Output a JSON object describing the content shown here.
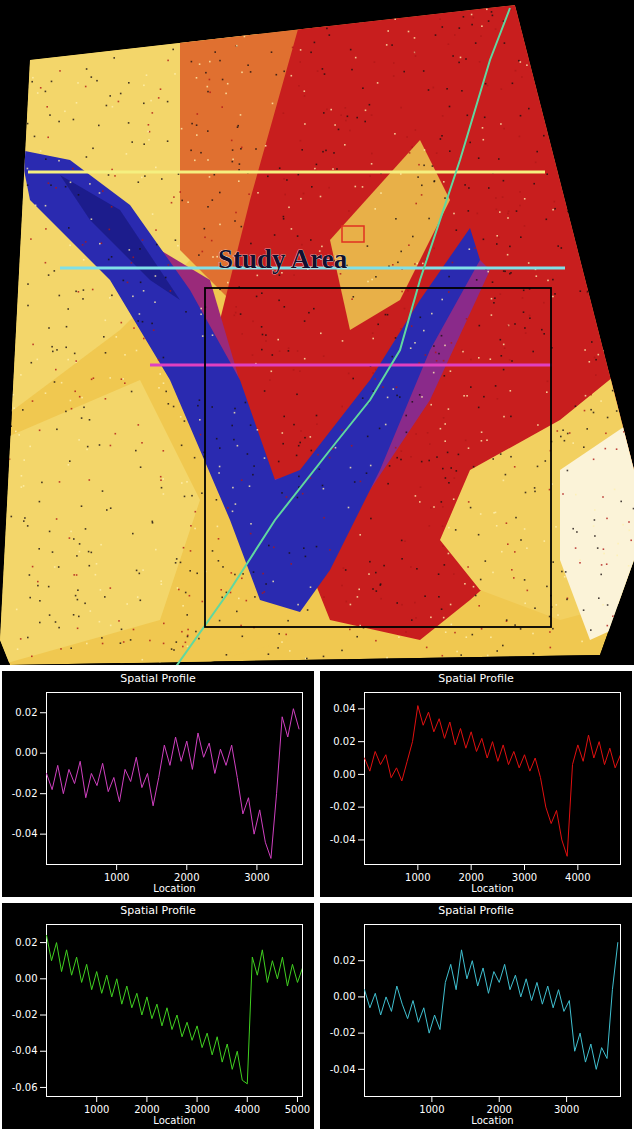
{
  "map": {
    "label": "Study Area"
  },
  "chart_data": [
    {
      "type": "line",
      "title": "Spatial Profile",
      "x_label": "Location",
      "color": "#d040c0",
      "xlim": [
        0,
        3650
      ],
      "xticks": [
        1000,
        2000,
        3000
      ],
      "ylim": [
        -0.055,
        0.03
      ],
      "yticks": [
        -0.04,
        -0.02,
        {
          "value": 0,
          "label": "0.00"
        },
        0.02
      ],
      "x": [
        0,
        80,
        160,
        240,
        320,
        400,
        480,
        560,
        640,
        720,
        800,
        880,
        960,
        1040,
        1120,
        1200,
        1280,
        1360,
        1440,
        1520,
        1600,
        1680,
        1760,
        1840,
        1920,
        2000,
        2080,
        2160,
        2240,
        2320,
        2400,
        2480,
        2560,
        2640,
        2720,
        2800,
        2880,
        2960,
        3040,
        3120,
        3200,
        3280,
        3360,
        3440,
        3520,
        3600
      ],
      "values": [
        -0.01,
        -0.018,
        -0.006,
        -0.02,
        -0.008,
        -0.015,
        -0.004,
        -0.022,
        -0.01,
        -0.016,
        -0.005,
        -0.019,
        -0.012,
        -0.024,
        -0.008,
        -0.014,
        -0.002,
        -0.017,
        -0.01,
        -0.026,
        -0.012,
        0.004,
        -0.006,
        0.008,
        -0.004,
        0.006,
        -0.008,
        0.01,
        -0.002,
        0.005,
        -0.01,
        0.002,
        -0.006,
        0.004,
        -0.012,
        -0.03,
        -0.022,
        -0.04,
        -0.028,
        -0.044,
        -0.052,
        -0.02,
        0.018,
        0.008,
        0.022,
        0.012
      ]
    },
    {
      "type": "line",
      "title": "Spatial Profile",
      "x_label": "Location",
      "color": "#e01010",
      "xlim": [
        0,
        4800
      ],
      "xticks": [
        1000,
        2000,
        3000,
        4000
      ],
      "ylim": [
        -0.055,
        0.05
      ],
      "yticks": [
        -0.04,
        -0.02,
        {
          "value": 0,
          "label": "0.00"
        },
        0.02,
        0.04
      ],
      "x": [
        0,
        100,
        200,
        300,
        400,
        500,
        600,
        700,
        800,
        900,
        1000,
        1100,
        1200,
        1300,
        1400,
        1500,
        1600,
        1700,
        1800,
        1900,
        2000,
        2100,
        2200,
        2300,
        2400,
        2500,
        2600,
        2700,
        2800,
        2900,
        3000,
        3100,
        3200,
        3300,
        3400,
        3500,
        3600,
        3700,
        3800,
        3900,
        4000,
        4100,
        4200,
        4300,
        4400,
        4500,
        4600,
        4700,
        4800
      ],
      "values": [
        0.01,
        0.002,
        0.014,
        0.006,
        0.012,
        -0.002,
        0.004,
        -0.004,
        0.008,
        0.02,
        0.042,
        0.03,
        0.038,
        0.026,
        0.034,
        0.022,
        0.032,
        0.018,
        0.028,
        0.016,
        0.026,
        0.014,
        0.022,
        0.01,
        0.02,
        0.008,
        0.018,
        0.006,
        0.014,
        0.004,
        0.012,
        0.002,
        0.01,
        -0.002,
        -0.02,
        -0.03,
        -0.022,
        -0.04,
        -0.05,
        0.006,
        0.018,
        0.008,
        0.024,
        0.01,
        0.02,
        0.006,
        0.016,
        0.004,
        0.012
      ]
    },
    {
      "type": "line",
      "title": "Spatial Profile",
      "x_label": "Location",
      "color": "#40d020",
      "xlim": [
        0,
        5100
      ],
      "xticks": [
        1000,
        2000,
        3000,
        4000,
        5000
      ],
      "ylim": [
        -0.065,
        0.03
      ],
      "yticks": [
        -0.06,
        -0.04,
        -0.02,
        {
          "value": 0,
          "label": "0.00"
        },
        0.02
      ],
      "x": [
        0,
        100,
        200,
        300,
        400,
        500,
        600,
        700,
        800,
        900,
        1000,
        1100,
        1200,
        1300,
        1400,
        1500,
        1600,
        1700,
        1800,
        1900,
        2000,
        2100,
        2200,
        2300,
        2400,
        2500,
        2600,
        2700,
        2800,
        2900,
        3000,
        3100,
        3200,
        3300,
        3400,
        3500,
        3600,
        3700,
        3800,
        3900,
        4000,
        4100,
        4200,
        4300,
        4400,
        4500,
        4600,
        4700,
        4800,
        4900,
        5000,
        5100
      ],
      "values": [
        0.024,
        0.01,
        0.02,
        0.004,
        0.016,
        0.002,
        0.012,
        -0.002,
        0.008,
        -0.006,
        0.004,
        -0.008,
        0.002,
        -0.01,
        0.0,
        -0.014,
        -0.004,
        -0.016,
        -0.008,
        -0.02,
        -0.01,
        -0.022,
        -0.014,
        -0.026,
        -0.016,
        -0.028,
        -0.02,
        -0.032,
        -0.024,
        -0.034,
        -0.026,
        -0.038,
        -0.03,
        -0.042,
        -0.032,
        -0.046,
        -0.036,
        -0.05,
        -0.04,
        -0.056,
        -0.058,
        0.012,
        0.002,
        0.016,
        -0.002,
        0.01,
        0.0,
        0.012,
        -0.004,
        0.008,
        -0.002,
        0.006
      ]
    },
    {
      "type": "line",
      "title": "Spatial Profile",
      "x_label": "Location",
      "color": "#40c0d0",
      "xlim": [
        0,
        3800
      ],
      "xticks": [
        1000,
        2000,
        3000
      ],
      "ylim": [
        -0.055,
        0.04
      ],
      "yticks": [
        -0.04,
        -0.02,
        {
          "value": 0,
          "label": "0.00"
        },
        0.02
      ],
      "x": [
        0,
        80,
        160,
        240,
        320,
        400,
        480,
        560,
        640,
        720,
        800,
        880,
        960,
        1040,
        1120,
        1200,
        1280,
        1360,
        1440,
        1520,
        1600,
        1680,
        1760,
        1840,
        1920,
        2000,
        2080,
        2160,
        2240,
        2320,
        2400,
        2480,
        2560,
        2640,
        2720,
        2800,
        2880,
        2960,
        3040,
        3120,
        3200,
        3280,
        3360,
        3440,
        3520,
        3600,
        3680,
        3760
      ],
      "values": [
        0.004,
        -0.006,
        0.002,
        -0.01,
        0.0,
        -0.008,
        0.006,
        -0.004,
        -0.012,
        -0.002,
        -0.014,
        -0.006,
        -0.02,
        -0.01,
        -0.018,
        0.008,
        0.018,
        0.004,
        0.026,
        0.01,
        0.02,
        0.006,
        0.016,
        0.002,
        0.014,
        0.008,
        0.018,
        0.004,
        0.012,
        0.0,
        0.01,
        -0.002,
        0.008,
        -0.004,
        0.006,
        -0.006,
        0.004,
        -0.008,
        -0.002,
        -0.03,
        -0.02,
        -0.036,
        -0.026,
        -0.04,
        -0.028,
        -0.034,
        0.004,
        0.03
      ]
    }
  ]
}
